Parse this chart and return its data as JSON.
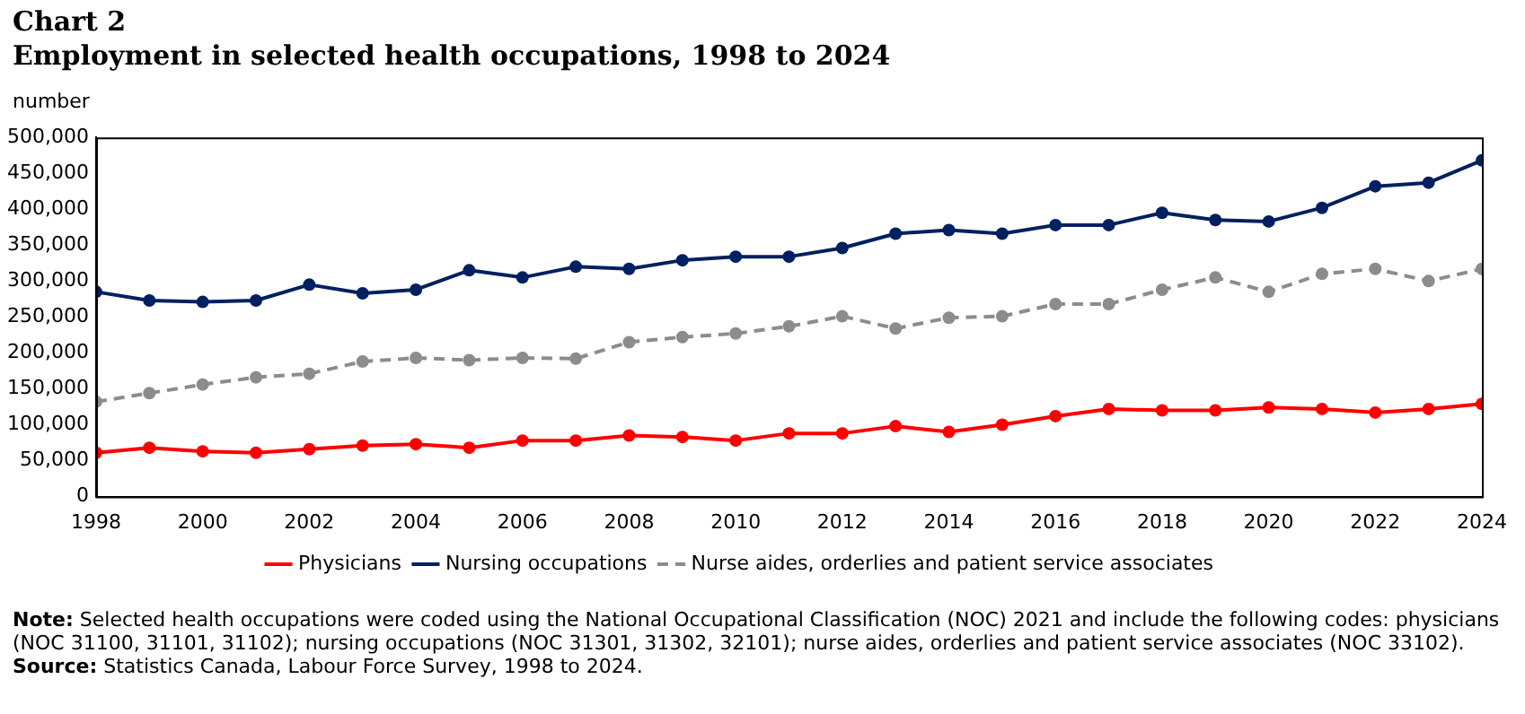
{
  "chart_data": {
    "type": "line",
    "title": "Chart 2",
    "subtitle": "Employment in selected health occupations, 1998 to 2024",
    "ylabel": "number",
    "x": [
      1998,
      1999,
      2000,
      2001,
      2002,
      2003,
      2004,
      2005,
      2006,
      2007,
      2008,
      2009,
      2010,
      2011,
      2012,
      2013,
      2014,
      2015,
      2016,
      2017,
      2018,
      2019,
      2020,
      2021,
      2022,
      2023,
      2024
    ],
    "series": [
      {
        "name": "Physicians",
        "color": "#ff0000",
        "values": [
          61000,
          68000,
          63000,
          61000,
          66000,
          71000,
          73000,
          68000,
          78000,
          78000,
          85000,
          83000,
          78000,
          88000,
          88000,
          98000,
          90000,
          100000,
          112000,
          122000,
          120000,
          120000,
          124000,
          122000,
          117000,
          122000,
          129000
        ]
      },
      {
        "name": "Nursing occupations",
        "color": "#002060",
        "values": [
          285000,
          273000,
          271000,
          273000,
          295000,
          283000,
          288000,
          315000,
          305000,
          320000,
          317000,
          329000,
          334000,
          334000,
          346000,
          366000,
          371000,
          366000,
          378000,
          378000,
          395000,
          385000,
          383000,
          402000,
          432000,
          437000,
          468000
        ]
      },
      {
        "name": "Nurse aides, orderlies and patient service associates",
        "color": "#8c8c8c",
        "line_style": "dashed",
        "values": [
          132000,
          144000,
          156000,
          166000,
          171000,
          188000,
          193000,
          190000,
          193000,
          192000,
          215000,
          222000,
          227000,
          237000,
          251000,
          234000,
          249000,
          251000,
          268000,
          268000,
          288000,
          305000,
          285000,
          310000,
          317000,
          300000,
          317000
        ]
      }
    ],
    "xlim": [
      1998,
      2024
    ],
    "xticks": [
      1998,
      2000,
      2002,
      2004,
      2006,
      2008,
      2010,
      2012,
      2014,
      2016,
      2018,
      2020,
      2022,
      2024
    ],
    "ylim": [
      0,
      500000
    ],
    "yticks": [
      0,
      {
        "value": 50000,
        "label": "50,000"
      },
      {
        "value": 100000,
        "label": "100,000"
      },
      {
        "value": 150000,
        "label": "150,000"
      },
      {
        "value": 200000,
        "label": "200,000"
      },
      {
        "value": 250000,
        "label": "250,000"
      },
      {
        "value": 300000,
        "label": "300,000"
      },
      {
        "value": 350000,
        "label": "350,000"
      },
      {
        "value": 400000,
        "label": "400,000"
      },
      {
        "value": 450000,
        "label": "450,000"
      },
      {
        "value": 500000,
        "label": "500,000"
      }
    ],
    "grid": false,
    "legend": "bottom",
    "marker": "circle",
    "line_style": "solid",
    "annotations": [
      "Note: Selected health occupations were coded using the National Occupational Classification (NOC) 2021 and include the following codes: physicians (NOC 31100, 31101, 31102); nursing occupations (NOC 31301, 31302, 32101); nurse aides, orderlies and patient service associates (NOC 33102).",
      "Source: Statistics Canada, Labour Force Survey, 1998 to 2024."
    ]
  }
}
